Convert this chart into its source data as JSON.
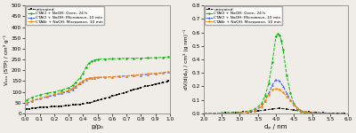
{
  "left": {
    "xlabel": "p/p₀",
    "ylabel": "Vₐₓₓ (STP) / cm³ g⁻¹",
    "xlim": [
      0.0,
      1.0
    ],
    "ylim": [
      0,
      500
    ],
    "yticks": [
      0,
      50,
      100,
      150,
      200,
      250,
      300,
      350,
      400,
      450,
      500
    ],
    "xticks": [
      0.0,
      0.1,
      0.2,
      0.3,
      0.4,
      0.5,
      0.6,
      0.7,
      0.8,
      0.9,
      1.0
    ],
    "series": [
      {
        "label": "untreated",
        "color": "#111111",
        "marker": "s",
        "linestyle": "--",
        "x": [
          0.01,
          0.03,
          0.05,
          0.07,
          0.1,
          0.13,
          0.15,
          0.18,
          0.2,
          0.23,
          0.25,
          0.28,
          0.3,
          0.33,
          0.35,
          0.38,
          0.4,
          0.43,
          0.45,
          0.48,
          0.5,
          0.53,
          0.55,
          0.58,
          0.6,
          0.63,
          0.65,
          0.68,
          0.7,
          0.73,
          0.75,
          0.78,
          0.8,
          0.83,
          0.85,
          0.88,
          0.9,
          0.93,
          0.95,
          0.98,
          0.99
        ],
        "y": [
          20,
          22,
          24,
          26,
          28,
          29,
          30,
          31,
          32,
          33,
          34,
          36,
          37,
          39,
          40,
          42,
          44,
          47,
          50,
          55,
          60,
          65,
          70,
          75,
          80,
          85,
          90,
          95,
          100,
          105,
          110,
          115,
          120,
          125,
          128,
          132,
          136,
          140,
          143,
          147,
          150
        ]
      },
      {
        "label": "CTACl + NaOH: Oven, 24 h",
        "color": "#00bb00",
        "marker": "o",
        "linestyle": "--",
        "x": [
          0.01,
          0.05,
          0.1,
          0.15,
          0.2,
          0.25,
          0.3,
          0.33,
          0.35,
          0.38,
          0.4,
          0.42,
          0.44,
          0.46,
          0.48,
          0.5,
          0.55,
          0.6,
          0.65,
          0.7,
          0.75,
          0.8,
          0.85,
          0.9,
          0.95,
          0.99
        ],
        "y": [
          62,
          75,
          85,
          93,
          100,
          108,
          118,
          130,
          145,
          165,
          185,
          215,
          232,
          242,
          247,
          250,
          252,
          253,
          254,
          255,
          255,
          256,
          257,
          258,
          259,
          262
        ]
      },
      {
        "label": "CTACl + NaOH: Microwave, 10 min",
        "color": "#3355ff",
        "marker": "^",
        "linestyle": "--",
        "x": [
          0.01,
          0.05,
          0.1,
          0.15,
          0.2,
          0.25,
          0.3,
          0.33,
          0.35,
          0.38,
          0.4,
          0.42,
          0.44,
          0.46,
          0.48,
          0.5,
          0.55,
          0.6,
          0.65,
          0.7,
          0.75,
          0.8,
          0.85,
          0.9,
          0.95,
          0.99
        ],
        "y": [
          45,
          58,
          68,
          76,
          84,
          92,
          102,
          112,
          122,
          138,
          148,
          156,
          162,
          164,
          165,
          166,
          168,
          169,
          171,
          173,
          175,
          178,
          181,
          184,
          187,
          191
        ]
      },
      {
        "label": "CTABr + NaOH: Microwave, 10 min",
        "color": "#ff8800",
        "marker": "o",
        "linestyle": "--",
        "x": [
          0.01,
          0.05,
          0.1,
          0.15,
          0.2,
          0.25,
          0.3,
          0.33,
          0.35,
          0.38,
          0.4,
          0.42,
          0.44,
          0.46,
          0.48,
          0.5,
          0.55,
          0.6,
          0.65,
          0.7,
          0.75,
          0.8,
          0.85,
          0.9,
          0.95,
          0.99
        ],
        "y": [
          47,
          60,
          70,
          79,
          88,
          97,
          107,
          118,
          128,
          142,
          150,
          158,
          163,
          165,
          166,
          167,
          169,
          170,
          172,
          174,
          177,
          180,
          183,
          186,
          189,
          193
        ]
      }
    ]
  },
  "right": {
    "xlabel": "dₚ / nm",
    "ylabel": "dV/d(dₚ) / cm³ (g nm)⁻¹",
    "xlim": [
      2.0,
      6.0
    ],
    "ylim": [
      0.0,
      0.8
    ],
    "yticks": [
      0.0,
      0.1,
      0.2,
      0.3,
      0.4,
      0.5,
      0.6,
      0.7,
      0.8
    ],
    "xticks": [
      2.0,
      2.5,
      3.0,
      3.5,
      4.0,
      4.5,
      5.0,
      5.5,
      6.0
    ],
    "series": [
      {
        "label": "untreated",
        "color": "#111111",
        "marker": "s",
        "linestyle": "--",
        "x": [
          2.0,
          2.3,
          2.6,
          2.9,
          3.1,
          3.3,
          3.5,
          3.7,
          3.9,
          4.1,
          4.3,
          4.5,
          4.7,
          4.9,
          5.1,
          5.3,
          5.5,
          5.7,
          5.9
        ],
        "y": [
          0.0,
          0.002,
          0.004,
          0.007,
          0.01,
          0.014,
          0.018,
          0.025,
          0.033,
          0.038,
          0.032,
          0.024,
          0.016,
          0.01,
          0.006,
          0.004,
          0.002,
          0.001,
          0.0
        ]
      },
      {
        "label": "CTACl + NaOH: Oven, 24 h",
        "color": "#00bb00",
        "marker": "o",
        "linestyle": "--",
        "x": [
          2.0,
          2.5,
          3.0,
          3.2,
          3.4,
          3.6,
          3.7,
          3.8,
          3.9,
          4.0,
          4.05,
          4.1,
          4.15,
          4.2,
          4.3,
          4.4,
          4.5,
          4.6,
          4.7,
          4.8,
          5.0,
          5.2,
          5.5,
          5.8
        ],
        "y": [
          0.0,
          0.003,
          0.008,
          0.015,
          0.03,
          0.07,
          0.13,
          0.22,
          0.38,
          0.57,
          0.59,
          0.58,
          0.54,
          0.47,
          0.28,
          0.15,
          0.07,
          0.03,
          0.015,
          0.007,
          0.002,
          0.001,
          0.0,
          0.0
        ]
      },
      {
        "label": "CTACl + NaOH: Microwave, 10 min",
        "color": "#3355ff",
        "marker": "^",
        "linestyle": "--",
        "x": [
          2.0,
          2.5,
          3.0,
          3.2,
          3.4,
          3.6,
          3.7,
          3.8,
          3.9,
          4.0,
          4.1,
          4.2,
          4.3,
          4.4,
          4.5,
          4.6,
          4.7,
          4.8,
          5.0,
          5.2,
          5.5
        ],
        "y": [
          0.0,
          0.002,
          0.005,
          0.01,
          0.02,
          0.05,
          0.09,
          0.15,
          0.21,
          0.25,
          0.24,
          0.2,
          0.15,
          0.1,
          0.065,
          0.038,
          0.02,
          0.01,
          0.003,
          0.001,
          0.0
        ]
      },
      {
        "label": "CTABr + NaOH: Microwave, 10 min",
        "color": "#ff8800",
        "marker": "o",
        "linestyle": "--",
        "x": [
          2.0,
          2.5,
          3.0,
          3.2,
          3.4,
          3.6,
          3.7,
          3.8,
          3.9,
          4.0,
          4.1,
          4.2,
          4.3,
          4.4,
          4.5,
          4.6,
          4.7,
          4.8,
          5.0,
          5.2,
          5.5
        ],
        "y": [
          0.0,
          0.002,
          0.005,
          0.01,
          0.022,
          0.055,
          0.095,
          0.14,
          0.175,
          0.185,
          0.175,
          0.155,
          0.125,
          0.095,
          0.065,
          0.04,
          0.022,
          0.012,
          0.004,
          0.001,
          0.0
        ]
      }
    ]
  },
  "fig_facecolor": "#f0ede8",
  "ax_facecolor": "#f0ede8",
  "border_color": "#888888"
}
